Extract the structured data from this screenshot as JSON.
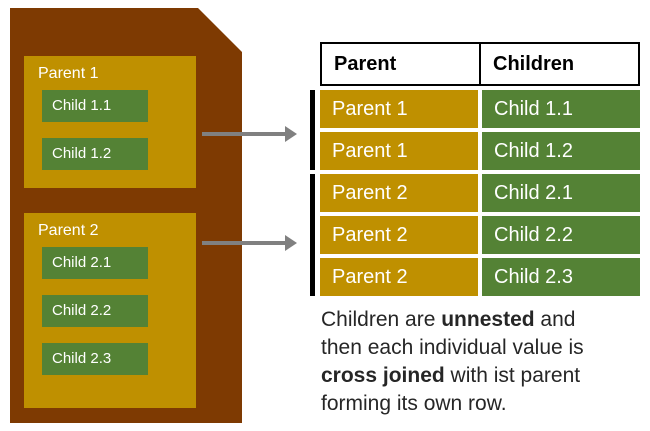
{
  "colors": {
    "brown": "#7e3a02",
    "gold": "#bf9000",
    "green": "#548235",
    "arrow": "#808080",
    "header_bg": "#ffffff",
    "header_text": "#000000",
    "cell_text": "#ffffff",
    "bracket": "#000000",
    "caption_text": "#262626"
  },
  "source": {
    "groups": [
      {
        "label": "Parent 1",
        "children": [
          "Child 1.1",
          "Child 1.2"
        ]
      },
      {
        "label": "Parent 2",
        "children": [
          "Child 2.1",
          "Child 2.2",
          "Child 2.3"
        ]
      }
    ]
  },
  "table": {
    "headers": [
      "Parent",
      "Children"
    ],
    "rows": [
      [
        "Parent 1",
        "Child 1.1"
      ],
      [
        "Parent 1",
        "Child 1.2"
      ],
      [
        "Parent 2",
        "Child 2.1"
      ],
      [
        "Parent 2",
        "Child 2.2"
      ],
      [
        "Parent 2",
        "Child 2.3"
      ]
    ]
  },
  "caption": {
    "seg1": "Children are ",
    "bold1": "unnested",
    "seg2": " and then each individual value is ",
    "bold2": "cross joined",
    "seg3": " with ist parent forming its own row."
  }
}
